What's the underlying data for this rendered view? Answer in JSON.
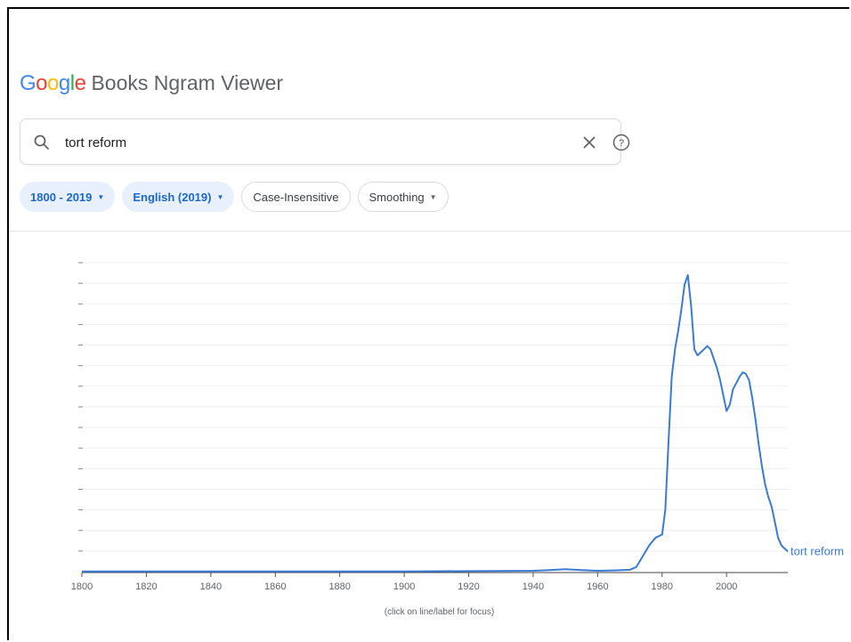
{
  "header": {
    "logo": "Google",
    "title": "Books Ngram Viewer"
  },
  "search": {
    "value": "tort reform"
  },
  "icons": {
    "search": "search-icon",
    "clear": "close-icon",
    "help": "help-icon"
  },
  "filters": {
    "year_range": "1800 - 2019",
    "corpus": "English (2019)",
    "case": "Case-Insensitive",
    "smoothing": "Smoothing"
  },
  "colors": {
    "line": "#3a7bd5",
    "chip_bg": "#e8f0fe",
    "chip_text": "#1967d2"
  },
  "chart_note": "(click on line/label for focus)",
  "chart_data": {
    "type": "line",
    "title": "",
    "xlabel": "",
    "ylabel": "",
    "xlim": [
      1800,
      2019
    ],
    "ylim": [
      0,
      1
    ],
    "xticks": [
      "1800",
      "1820",
      "1840",
      "1860",
      "1880",
      "1900",
      "1920",
      "1940",
      "1960",
      "1980",
      "2000"
    ],
    "grid": true,
    "series": [
      {
        "name": "tort reform",
        "x": [
          1800,
          1850,
          1900,
          1940,
          1945,
          1950,
          1955,
          1960,
          1965,
          1970,
          1972,
          1974,
          1976,
          1978,
          1980,
          1981,
          1982,
          1983,
          1984,
          1985,
          1986,
          1987,
          1988,
          1989,
          1990,
          1991,
          1992,
          1993,
          1994,
          1995,
          1996,
          1997,
          1998,
          1999,
          2000,
          2001,
          2002,
          2003,
          2004,
          2005,
          2006,
          2007,
          2008,
          2009,
          2010,
          2011,
          2012,
          2013,
          2014,
          2015,
          2016,
          2017,
          2018,
          2019
        ],
        "y": [
          0.001,
          0.001,
          0.001,
          0.003,
          0.005,
          0.008,
          0.005,
          0.003,
          0.004,
          0.006,
          0.015,
          0.05,
          0.085,
          0.11,
          0.12,
          0.2,
          0.42,
          0.63,
          0.72,
          0.78,
          0.85,
          0.93,
          0.96,
          0.86,
          0.72,
          0.7,
          0.71,
          0.72,
          0.73,
          0.72,
          0.69,
          0.66,
          0.62,
          0.57,
          0.52,
          0.54,
          0.59,
          0.61,
          0.63,
          0.645,
          0.64,
          0.62,
          0.56,
          0.49,
          0.41,
          0.34,
          0.28,
          0.24,
          0.21,
          0.16,
          0.11,
          0.085,
          0.075,
          0.065
        ]
      }
    ]
  }
}
